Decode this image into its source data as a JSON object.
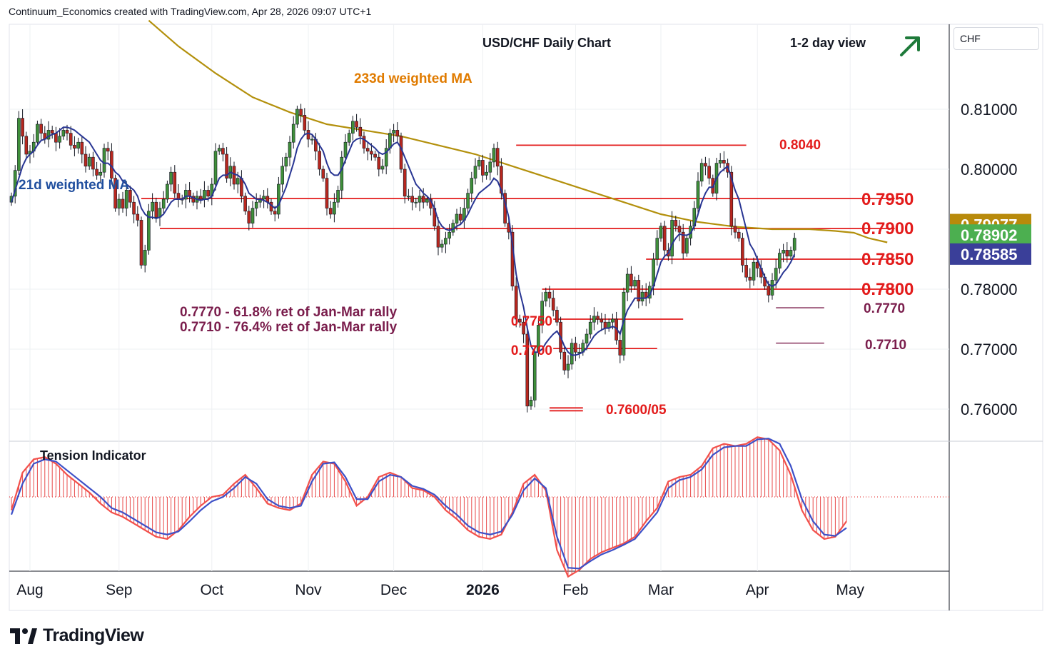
{
  "header": {
    "text": "Continuum_Economics created with TradingView.com, Apr 28, 2026 09:07 UTC+1"
  },
  "currency_badge": "CHF",
  "brand": {
    "name": "TradingView",
    "logo_icon": "tradingview-logo-icon"
  },
  "view": {
    "label": "1-2 day view",
    "arrow_icon": "arrow-up-right-icon",
    "arrow_color": "#1e7a3a"
  },
  "chart_data": {
    "type": "candlestick",
    "title": "USD/CHF Daily Chart",
    "y_range": [
      0.7545,
      0.825
    ],
    "x_range": [
      0,
      246
    ],
    "y_ticks": [
      {
        "value": 0.81,
        "label": "0.81000"
      },
      {
        "value": 0.8,
        "label": "0.80000"
      },
      {
        "value": 0.78,
        "label": "0.78000"
      },
      {
        "value": 0.77,
        "label": "0.77000"
      },
      {
        "value": 0.76,
        "label": "0.76000"
      }
    ],
    "x_ticks": [
      {
        "x": 5,
        "label": "Aug"
      },
      {
        "x": 29,
        "label": "Sep"
      },
      {
        "x": 54,
        "label": "Oct"
      },
      {
        "x": 80,
        "label": "Nov"
      },
      {
        "x": 103,
        "label": "Dec"
      },
      {
        "x": 127,
        "label": "2026",
        "bold": true
      },
      {
        "x": 152,
        "label": "Feb"
      },
      {
        "x": 175,
        "label": "Mar"
      },
      {
        "x": 201,
        "label": "Apr"
      },
      {
        "x": 226,
        "label": "May"
      }
    ],
    "price_badges": [
      {
        "value": 0.79077,
        "label": "0.79077",
        "color": "#b88a0b"
      },
      {
        "value": 0.78902,
        "label": "0.78902",
        "color": "#4caf50"
      },
      {
        "value": 0.78585,
        "label": "0.78585",
        "color": "#3a3f99"
      }
    ],
    "closes": [
      0.7955,
      0.7998,
      0.8085,
      0.8055,
      0.8025,
      0.803,
      0.8045,
      0.8075,
      0.806,
      0.805,
      0.8065,
      0.806,
      0.8045,
      0.8055,
      0.8065,
      0.806,
      0.804,
      0.8035,
      0.8045,
      0.8025,
      0.8005,
      0.802,
      0.8,
      0.799,
      0.7995,
      0.8035,
      0.803,
      0.7985,
      0.7935,
      0.795,
      0.7935,
      0.7965,
      0.7945,
      0.7925,
      0.7915,
      0.784,
      0.7865,
      0.793,
      0.7945,
      0.792,
      0.7935,
      0.795,
      0.7975,
      0.7995,
      0.796,
      0.795,
      0.795,
      0.7965,
      0.7955,
      0.7945,
      0.7955,
      0.795,
      0.7965,
      0.7955,
      0.7975,
      0.803,
      0.8035,
      0.8025,
      0.7985,
      0.8005,
      0.7975,
      0.7985,
      0.7955,
      0.793,
      0.791,
      0.7935,
      0.7945,
      0.795,
      0.7955,
      0.7945,
      0.793,
      0.7925,
      0.7975,
      0.8005,
      0.802,
      0.8045,
      0.8075,
      0.81,
      0.809,
      0.8065,
      0.805,
      0.805,
      0.803,
      0.8,
      0.7985,
      0.7935,
      0.7925,
      0.7945,
      0.7965,
      0.802,
      0.8045,
      0.806,
      0.808,
      0.807,
      0.8055,
      0.8035,
      0.803,
      0.8025,
      0.802,
      0.8,
      0.8005,
      0.8035,
      0.806,
      0.8065,
      0.8055,
      0.8,
      0.7955,
      0.7955,
      0.7945,
      0.7945,
      0.7955,
      0.7945,
      0.795,
      0.7935,
      0.7905,
      0.787,
      0.7875,
      0.7885,
      0.7895,
      0.791,
      0.7925,
      0.7915,
      0.7935,
      0.796,
      0.7985,
      0.8005,
      0.8015,
      0.799,
      0.7995,
      0.8012,
      0.8035,
      0.8005,
      0.796,
      0.791,
      0.7895,
      0.7805,
      0.775,
      0.7745,
      0.7725,
      0.7605,
      0.7615,
      0.7695,
      0.774,
      0.778,
      0.7795,
      0.7785,
      0.7765,
      0.7745,
      0.7695,
      0.7665,
      0.7675,
      0.771,
      0.7695,
      0.7695,
      0.771,
      0.7725,
      0.7745,
      0.7755,
      0.775,
      0.7745,
      0.7735,
      0.7745,
      0.775,
      0.7715,
      0.769,
      0.7795,
      0.7825,
      0.7805,
      0.7815,
      0.778,
      0.7795,
      0.7785,
      0.7805,
      0.785,
      0.7885,
      0.7905,
      0.7865,
      0.7855,
      0.7915,
      0.7905,
      0.7895,
      0.786,
      0.7885,
      0.7905,
      0.7935,
      0.798,
      0.801,
      0.8005,
      0.7985,
      0.796,
      0.801,
      0.8015,
      0.801,
      0.7995,
      0.7905,
      0.7895,
      0.7885,
      0.784,
      0.782,
      0.7815,
      0.7845,
      0.7835,
      0.782,
      0.7805,
      0.779,
      0.7815,
      0.7835,
      0.786,
      0.7865,
      0.7855,
      0.7865,
      0.7885
    ],
    "wma21": [
      0.7945,
      0.7965,
      0.7985,
      0.8005,
      0.8018,
      0.8025,
      0.803,
      0.804,
      0.8048,
      0.805,
      0.8055,
      0.8058,
      0.806,
      0.8065,
      0.807,
      0.807,
      0.8068,
      0.8065,
      0.806,
      0.8055,
      0.805,
      0.8045,
      0.8035,
      0.8025,
      0.8015,
      0.801,
      0.801,
      0.8005,
      0.7995,
      0.799,
      0.798,
      0.7975,
      0.797,
      0.7965,
      0.7955,
      0.7935,
      0.7925,
      0.792,
      0.792,
      0.7918,
      0.792,
      0.7925,
      0.7935,
      0.7945,
      0.795,
      0.795,
      0.795,
      0.7955,
      0.7955,
      0.7952,
      0.795,
      0.7948,
      0.795,
      0.795,
      0.7955,
      0.797,
      0.7985,
      0.799,
      0.799,
      0.7995,
      0.7992,
      0.799,
      0.7985,
      0.7975,
      0.796,
      0.7955,
      0.795,
      0.795,
      0.7948,
      0.7945,
      0.794,
      0.7935,
      0.794,
      0.7955,
      0.797,
      0.799,
      0.801,
      0.8035,
      0.805,
      0.8058,
      0.806,
      0.8058,
      0.805,
      0.804,
      0.803,
      0.801,
      0.7995,
      0.799,
      0.799,
      0.8,
      0.8015,
      0.803,
      0.8045,
      0.805,
      0.8052,
      0.805,
      0.8045,
      0.804,
      0.8035,
      0.8028,
      0.8025,
      0.8028,
      0.8035,
      0.8042,
      0.8045,
      0.8035,
      0.802,
      0.8005,
      0.799,
      0.7975,
      0.7968,
      0.796,
      0.7955,
      0.7948,
      0.7935,
      0.7915,
      0.7905,
      0.79,
      0.7898,
      0.79,
      0.7905,
      0.7908,
      0.7915,
      0.7925,
      0.7938,
      0.795,
      0.796,
      0.7965,
      0.797,
      0.7975,
      0.7985,
      0.798,
      0.7965,
      0.7945,
      0.792,
      0.7875,
      0.7825,
      0.7795,
      0.777,
      0.7735,
      0.7705,
      0.7695,
      0.7695,
      0.77,
      0.771,
      0.7718,
      0.7725,
      0.773,
      0.772,
      0.7705,
      0.7695,
      0.769,
      0.769,
      0.7692,
      0.7695,
      0.7702,
      0.7712,
      0.7722,
      0.7728,
      0.7732,
      0.7735,
      0.7735,
      0.7738,
      0.7735,
      0.7725,
      0.7748,
      0.7765,
      0.7775,
      0.7785,
      0.7785,
      0.7785,
      0.7785,
      0.779,
      0.7805,
      0.7825,
      0.7845,
      0.7855,
      0.786,
      0.7875,
      0.7885,
      0.7892,
      0.789,
      0.789,
      0.7893,
      0.7905,
      0.7925,
      0.7945,
      0.796,
      0.797,
      0.797,
      0.7985,
      0.7995,
      0.8,
      0.8005,
      0.7985,
      0.7965,
      0.795,
      0.7925,
      0.79,
      0.7875,
      0.7865,
      0.785,
      0.7835,
      0.782,
      0.7808,
      0.7805,
      0.7808,
      0.7818,
      0.7828,
      0.7835,
      0.7845,
      0.7858
    ],
    "wma233": [
      [
        37,
        0.8248
      ],
      [
        45,
        0.8205
      ],
      [
        55,
        0.816
      ],
      [
        65,
        0.812
      ],
      [
        75,
        0.8095
      ],
      [
        85,
        0.8075
      ],
      [
        95,
        0.8065
      ],
      [
        105,
        0.8055
      ],
      [
        115,
        0.804
      ],
      [
        125,
        0.8025
      ],
      [
        135,
        0.8005
      ],
      [
        145,
        0.7985
      ],
      [
        155,
        0.7965
      ],
      [
        165,
        0.7945
      ],
      [
        175,
        0.7925
      ],
      [
        185,
        0.7912
      ],
      [
        195,
        0.7904
      ],
      [
        205,
        0.79
      ],
      [
        215,
        0.79
      ],
      [
        222,
        0.7897
      ],
      [
        227,
        0.7894
      ],
      [
        231,
        0.7885
      ],
      [
        236,
        0.7878
      ]
    ],
    "levels": [
      {
        "label": "0.8040",
        "value": 0.804,
        "x_start": 136,
        "x_end": 198
      },
      {
        "label": "0.7950",
        "value": 0.7951,
        "x_start": 35,
        "x_end": 238
      },
      {
        "label": "0.7900",
        "value": 0.7901,
        "x_start": 40,
        "x_end": 238
      },
      {
        "label": "0.7850",
        "value": 0.785,
        "x_start": 171,
        "x_end": 238
      },
      {
        "label": "0.7800",
        "value": 0.78,
        "x_start": 143,
        "x_end": 238
      },
      {
        "label": "0.7770",
        "value": 0.7769,
        "x_start": 206,
        "x_end": 219,
        "thin": true
      },
      {
        "label": "0.7750",
        "value": 0.775,
        "x_start": 146,
        "x_end": 181
      },
      {
        "label": "0.7710",
        "value": 0.771,
        "x_start": 206,
        "x_end": 219,
        "thin": true
      },
      {
        "label": "0.7700",
        "value": 0.7701,
        "x_start": 146,
        "x_end": 174
      },
      {
        "label": "0.7600/05",
        "value": 0.7602,
        "x_start": 145,
        "x_end": 154,
        "double": true
      }
    ],
    "annotations": [
      {
        "text": "233d weighted MA",
        "color": "#e07b00"
      },
      {
        "text": "21d weighted MA",
        "color": "#1f4e9e"
      },
      {
        "text": "0.7770 - 61.8% ret of Jan-Mar rally",
        "color": "#7a1d4c"
      },
      {
        "text": "0.7710 - 76.4% ret of Jan-Mar rally",
        "color": "#7a1d4c"
      }
    ],
    "indicator": {
      "title": "Tension Indicator",
      "fast": [
        [
          0,
          -0.3
        ],
        [
          3,
          0.55
        ],
        [
          6,
          0.85
        ],
        [
          9,
          0.9
        ],
        [
          12,
          0.75
        ],
        [
          15,
          0.5
        ],
        [
          18,
          0.3
        ],
        [
          21,
          0.1
        ],
        [
          24,
          -0.15
        ],
        [
          27,
          -0.35
        ],
        [
          30,
          -0.45
        ],
        [
          33,
          -0.6
        ],
        [
          36,
          -0.75
        ],
        [
          39,
          -0.9
        ],
        [
          42,
          -0.95
        ],
        [
          45,
          -0.75
        ],
        [
          48,
          -0.45
        ],
        [
          51,
          -0.2
        ],
        [
          54,
          0.0
        ],
        [
          57,
          0.05
        ],
        [
          60,
          0.3
        ],
        [
          63,
          0.5
        ],
        [
          66,
          0.2
        ],
        [
          69,
          -0.15
        ],
        [
          72,
          -0.25
        ],
        [
          75,
          -0.3
        ],
        [
          78,
          -0.15
        ],
        [
          81,
          0.5
        ],
        [
          84,
          0.8
        ],
        [
          87,
          0.75
        ],
        [
          90,
          0.35
        ],
        [
          93,
          -0.2
        ],
        [
          96,
          0.0
        ],
        [
          99,
          0.45
        ],
        [
          102,
          0.55
        ],
        [
          105,
          0.45
        ],
        [
          108,
          0.2
        ],
        [
          111,
          0.15
        ],
        [
          114,
          0.0
        ],
        [
          117,
          -0.3
        ],
        [
          120,
          -0.5
        ],
        [
          123,
          -0.75
        ],
        [
          126,
          -0.9
        ],
        [
          129,
          -0.95
        ],
        [
          132,
          -0.85
        ],
        [
          135,
          -0.35
        ],
        [
          138,
          0.3
        ],
        [
          141,
          0.5
        ],
        [
          144,
          0.15
        ],
        [
          147,
          -1.2
        ],
        [
          150,
          -1.8
        ],
        [
          153,
          -1.65
        ],
        [
          156,
          -1.4
        ],
        [
          159,
          -1.25
        ],
        [
          162,
          -1.15
        ],
        [
          165,
          -1.05
        ],
        [
          168,
          -0.9
        ],
        [
          171,
          -0.55
        ],
        [
          174,
          -0.25
        ],
        [
          177,
          0.35
        ],
        [
          180,
          0.45
        ],
        [
          183,
          0.5
        ],
        [
          186,
          0.7
        ],
        [
          189,
          1.1
        ],
        [
          192,
          1.2
        ],
        [
          195,
          1.15
        ],
        [
          198,
          1.2
        ],
        [
          201,
          1.35
        ],
        [
          204,
          1.3
        ],
        [
          207,
          1.05
        ],
        [
          210,
          0.5
        ],
        [
          213,
          -0.3
        ],
        [
          216,
          -0.75
        ],
        [
          219,
          -0.95
        ],
        [
          222,
          -0.9
        ],
        [
          225,
          -0.55
        ]
      ],
      "slow": [
        [
          0,
          -0.4
        ],
        [
          3,
          0.3
        ],
        [
          6,
          0.75
        ],
        [
          9,
          0.85
        ],
        [
          12,
          0.8
        ],
        [
          15,
          0.6
        ],
        [
          18,
          0.4
        ],
        [
          21,
          0.2
        ],
        [
          24,
          0.0
        ],
        [
          27,
          -0.25
        ],
        [
          30,
          -0.35
        ],
        [
          33,
          -0.5
        ],
        [
          36,
          -0.65
        ],
        [
          39,
          -0.8
        ],
        [
          42,
          -0.85
        ],
        [
          45,
          -0.78
        ],
        [
          48,
          -0.55
        ],
        [
          51,
          -0.3
        ],
        [
          54,
          -0.1
        ],
        [
          57,
          0.0
        ],
        [
          60,
          0.2
        ],
        [
          63,
          0.45
        ],
        [
          66,
          0.3
        ],
        [
          69,
          -0.05
        ],
        [
          72,
          -0.2
        ],
        [
          75,
          -0.25
        ],
        [
          78,
          -0.2
        ],
        [
          81,
          0.35
        ],
        [
          84,
          0.75
        ],
        [
          87,
          0.78
        ],
        [
          90,
          0.45
        ],
        [
          93,
          -0.05
        ],
        [
          96,
          -0.05
        ],
        [
          99,
          0.35
        ],
        [
          102,
          0.5
        ],
        [
          105,
          0.45
        ],
        [
          108,
          0.25
        ],
        [
          111,
          0.18
        ],
        [
          114,
          0.05
        ],
        [
          117,
          -0.2
        ],
        [
          120,
          -0.4
        ],
        [
          123,
          -0.65
        ],
        [
          126,
          -0.8
        ],
        [
          129,
          -0.85
        ],
        [
          132,
          -0.78
        ],
        [
          135,
          -0.4
        ],
        [
          138,
          0.15
        ],
        [
          141,
          0.42
        ],
        [
          144,
          0.2
        ],
        [
          147,
          -0.9
        ],
        [
          150,
          -1.6
        ],
        [
          153,
          -1.62
        ],
        [
          156,
          -1.45
        ],
        [
          159,
          -1.3
        ],
        [
          162,
          -1.2
        ],
        [
          165,
          -1.08
        ],
        [
          168,
          -0.95
        ],
        [
          171,
          -0.65
        ],
        [
          174,
          -0.35
        ],
        [
          177,
          0.2
        ],
        [
          180,
          0.38
        ],
        [
          183,
          0.45
        ],
        [
          186,
          0.62
        ],
        [
          189,
          0.95
        ],
        [
          192,
          1.12
        ],
        [
          195,
          1.15
        ],
        [
          198,
          1.15
        ],
        [
          201,
          1.3
        ],
        [
          204,
          1.32
        ],
        [
          207,
          1.2
        ],
        [
          210,
          0.7
        ],
        [
          213,
          -0.05
        ],
        [
          216,
          -0.55
        ],
        [
          219,
          -0.85
        ],
        [
          222,
          -0.88
        ],
        [
          225,
          -0.7
        ]
      ]
    }
  }
}
